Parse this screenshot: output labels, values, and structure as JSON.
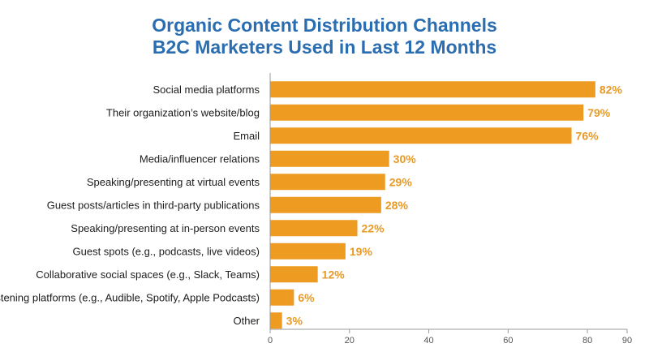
{
  "chart_data": {
    "type": "bar",
    "orientation": "horizontal",
    "title": "Organic Content Distribution Channels",
    "subtitle": "B2C Marketers Used in Last 12 Months",
    "categories": [
      "Social media platforms",
      "Their organization’s website/blog",
      "Email",
      "Media/influencer relations",
      "Speaking/presenting at virtual events",
      "Guest posts/articles in third-party publications",
      "Speaking/presenting at in-person events",
      "Guest spots (e.g., podcasts, live videos)",
      "Collaborative social spaces (e.g., Slack, Teams)",
      "Listening platforms (e.g., Audible, Spotify, Apple Podcasts)",
      "Other"
    ],
    "values": [
      82,
      79,
      76,
      30,
      29,
      28,
      22,
      19,
      12,
      6,
      3
    ],
    "value_labels": [
      "82%",
      "79%",
      "76%",
      "30%",
      "29%",
      "28%",
      "22%",
      "19%",
      "12%",
      "6%",
      "3%"
    ],
    "xlim": [
      0,
      90
    ],
    "x_ticks": [
      0,
      20,
      40,
      60,
      80,
      90
    ],
    "x_tick_labels": [
      "0",
      "20",
      "40",
      "60",
      "80",
      "90"
    ],
    "grid": false,
    "legend": "none",
    "colors": {
      "bar": "#ee9b22",
      "title": "#2a6db0",
      "value_label": "#e79a27"
    }
  }
}
